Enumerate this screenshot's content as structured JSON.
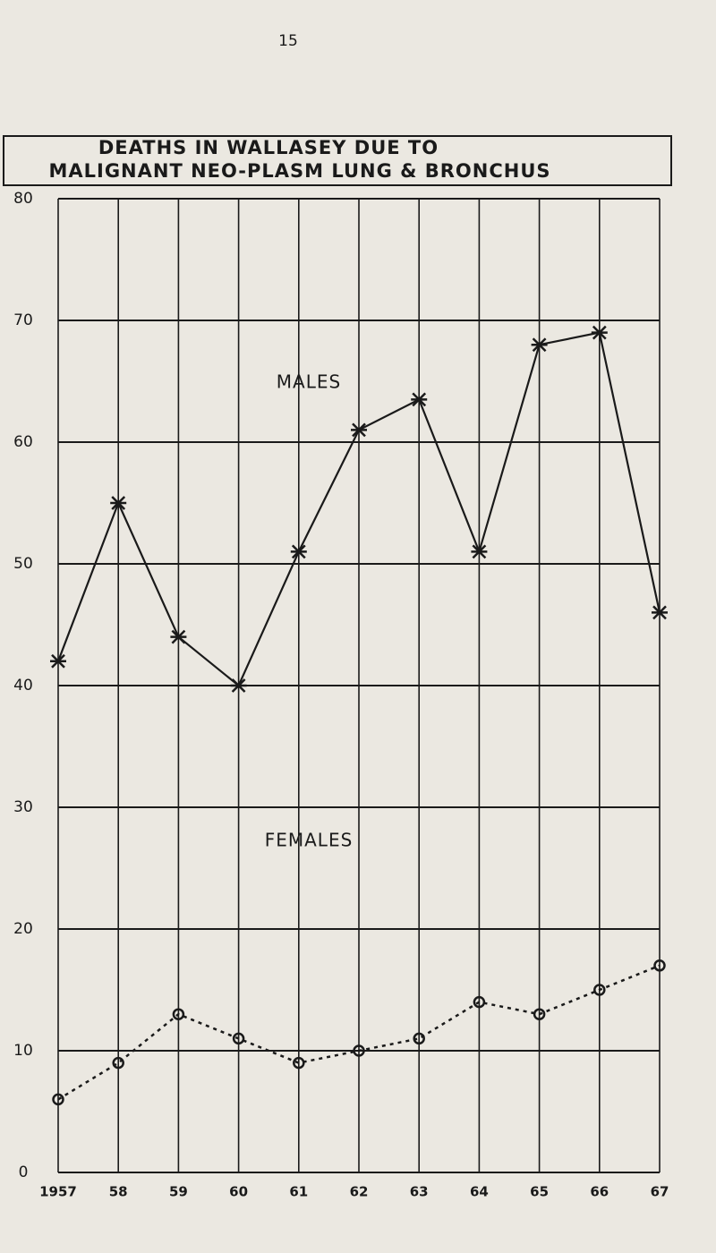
{
  "page_number": "15",
  "chart_data": {
    "type": "line",
    "title": [
      "DEATHS IN WALLASEY DUE TO",
      "MALIGNANT NEO-PLASM LUNG & BRONCHUS"
    ],
    "categories": [
      "1957",
      "58",
      "59",
      "60",
      "61",
      "62",
      "63",
      "64",
      "65",
      "66",
      "67"
    ],
    "series": [
      {
        "name": "MALES",
        "color": "#1a1a1a",
        "style": "solid",
        "marker": "star",
        "values": [
          42,
          55,
          44,
          40,
          51,
          61,
          63.5,
          51,
          68,
          69,
          46
        ]
      },
      {
        "name": "FEMALES",
        "color": "#1a1a1a",
        "style": "dotted",
        "marker": "circle",
        "values": [
          6,
          9,
          13,
          11,
          9,
          10,
          11,
          14,
          13,
          15,
          17
        ]
      }
    ],
    "ylim": [
      0,
      80
    ],
    "yticks": [
      0,
      10,
      20,
      30,
      40,
      50,
      60,
      70,
      80
    ],
    "grid": true
  }
}
